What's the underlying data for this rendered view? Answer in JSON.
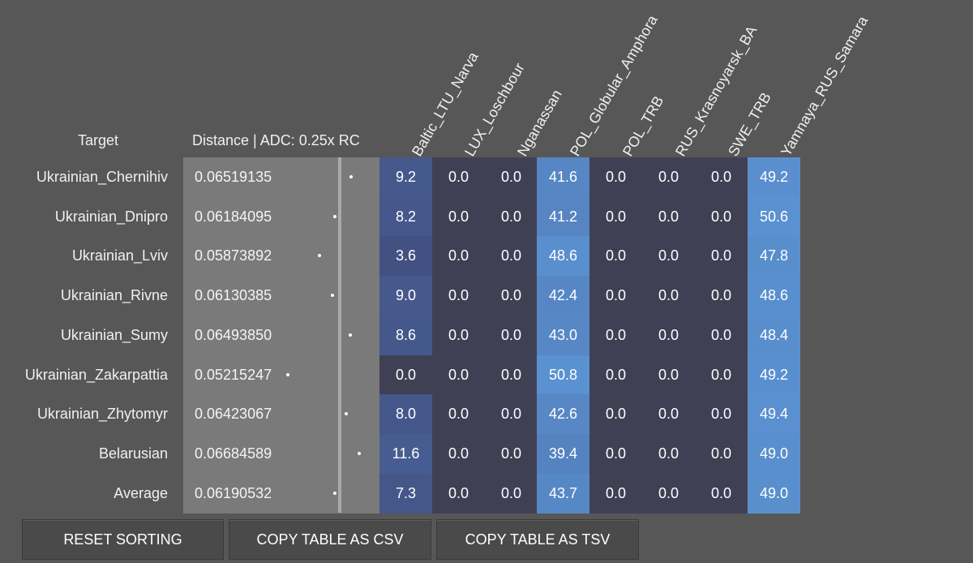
{
  "headers": {
    "target": "Target",
    "distance": "Distance | ADC: 0.25x RC",
    "columns": [
      "Baltic_LTU_Narva",
      "LUX_Loschbour",
      "Nganassan",
      "POL_Globular_Amphora",
      "POL_TRB",
      "RUS_Krasnoyarsk_BA",
      "SWE_TRB",
      "Yamnaya_RUS_Samara"
    ]
  },
  "rows": [
    {
      "name": "Ukrainian_Chernihiv",
      "distance": "0.06519135",
      "values": [
        "9.2",
        "0.0",
        "0.0",
        "41.6",
        "0.0",
        "0.0",
        "0.0",
        "49.2"
      ]
    },
    {
      "name": "Ukrainian_Dnipro",
      "distance": "0.06184095",
      "values": [
        "8.2",
        "0.0",
        "0.0",
        "41.2",
        "0.0",
        "0.0",
        "0.0",
        "50.6"
      ]
    },
    {
      "name": "Ukrainian_Lviv",
      "distance": "0.05873892",
      "values": [
        "3.6",
        "0.0",
        "0.0",
        "48.6",
        "0.0",
        "0.0",
        "0.0",
        "47.8"
      ]
    },
    {
      "name": "Ukrainian_Rivne",
      "distance": "0.06130385",
      "values": [
        "9.0",
        "0.0",
        "0.0",
        "42.4",
        "0.0",
        "0.0",
        "0.0",
        "48.6"
      ]
    },
    {
      "name": "Ukrainian_Sumy",
      "distance": "0.06493850",
      "values": [
        "8.6",
        "0.0",
        "0.0",
        "43.0",
        "0.0",
        "0.0",
        "0.0",
        "48.4"
      ]
    },
    {
      "name": "Ukrainian_Zakarpattia",
      "distance": "0.05215247",
      "values": [
        "0.0",
        "0.0",
        "0.0",
        "50.8",
        "0.0",
        "0.0",
        "0.0",
        "49.2"
      ]
    },
    {
      "name": "Ukrainian_Zhytomyr",
      "distance": "0.06423067",
      "values": [
        "8.0",
        "0.0",
        "0.0",
        "42.6",
        "0.0",
        "0.0",
        "0.0",
        "49.4"
      ]
    },
    {
      "name": "Belarusian",
      "distance": "0.06684589",
      "values": [
        "11.6",
        "0.0",
        "0.0",
        "39.4",
        "0.0",
        "0.0",
        "0.0",
        "49.0"
      ]
    },
    {
      "name": "Average",
      "distance": "0.06190532",
      "values": [
        "7.3",
        "0.0",
        "0.0",
        "43.7",
        "0.0",
        "0.0",
        "0.0",
        "49.0"
      ]
    }
  ],
  "buttons": {
    "reset": "RESET SORTING",
    "csv": "COPY TABLE AS CSV",
    "tsv": "COPY TABLE AS TSV"
  },
  "colors": {
    "zero": "#404055",
    "low": "#40497a",
    "high": "#5b93d3"
  }
}
